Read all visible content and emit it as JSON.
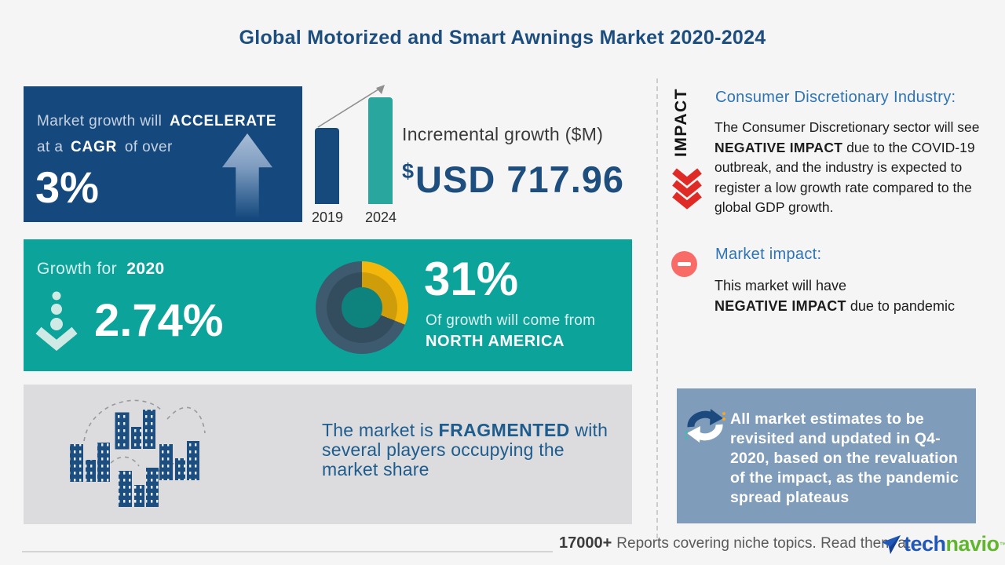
{
  "page": {
    "title": "Global Motorized and Smart Awnings Market 2020-2024",
    "background": "#f5f5f6"
  },
  "colors": {
    "dark_blue": "#15497d",
    "teal": "#0ca39b",
    "gray_panel": "#dcdcde",
    "note_blue": "#7f9cba",
    "heading_blue": "#2e74b5",
    "text_blue": "#1d4e7e",
    "red": "#e02a25",
    "salmon": "#f96b66",
    "yellow": "#f3b70c",
    "slate": "#3d5a6e"
  },
  "cagr_box": {
    "line1_pre": "Market growth will",
    "line1_bold": "ACCELERATE",
    "line2_pre": "at a",
    "line2_bold": "CAGR",
    "line2_post": "of over",
    "value": "3%"
  },
  "chart_data": [
    {
      "type": "bar",
      "title": "Incremental growth ($M)",
      "categories": [
        "2019",
        "2024"
      ],
      "values": [
        97,
        136
      ],
      "values_note": "bar heights relative, axis unlabeled",
      "colors": [
        "#174a7c",
        "#29a79f"
      ],
      "annotation": "USD 717.96",
      "legend": "none",
      "grid": false
    },
    {
      "type": "pie",
      "title": "31% of growth will come from NORTH AMERICA",
      "slices": [
        {
          "label": "NORTH AMERICA",
          "value": 31,
          "color": "#f3b70c"
        },
        {
          "label": "Rest of market",
          "value": 69,
          "color": "#3d5a6e"
        }
      ],
      "donut": true,
      "legend": "none"
    }
  ],
  "incremental": {
    "label": "Incremental growth ($M)",
    "currency": "$",
    "value": "USD 717.96"
  },
  "growth_box": {
    "label_pre": "Growth for",
    "label_bold": "2020",
    "value": "2.74%",
    "share_value": "31%",
    "share_line1": "Of growth will come from",
    "share_line2": "NORTH AMERICA"
  },
  "fragment_box": {
    "pre": "The market is ",
    "bold": "FRAGMENTED",
    "rest": " with several players occupying the market share"
  },
  "impact": {
    "label": "IMPACT",
    "industry": {
      "heading": "Consumer Discretionary Industry:",
      "pre": "The Consumer Discretionary sector will see ",
      "bold": "NEGATIVE IMPACT",
      "post": " due to the COVID-19 outbreak, and the industry is expected to register a low growth rate compared to the global GDP growth."
    },
    "market": {
      "heading": "Market impact:",
      "line1": "This market will have",
      "bold": "NEGATIVE IMPACT",
      "post": " due to pandemic"
    }
  },
  "note_box": {
    "text": "All market estimates to be revisited and updated in Q4-2020, based on the revaluation of the impact, as the pandemic spread plateaus"
  },
  "footer": {
    "count": "17000+",
    "text": "Reports covering niche topics. Read them at",
    "logo_part1": "tech",
    "logo_part2": "navio",
    "trademark": "™"
  }
}
